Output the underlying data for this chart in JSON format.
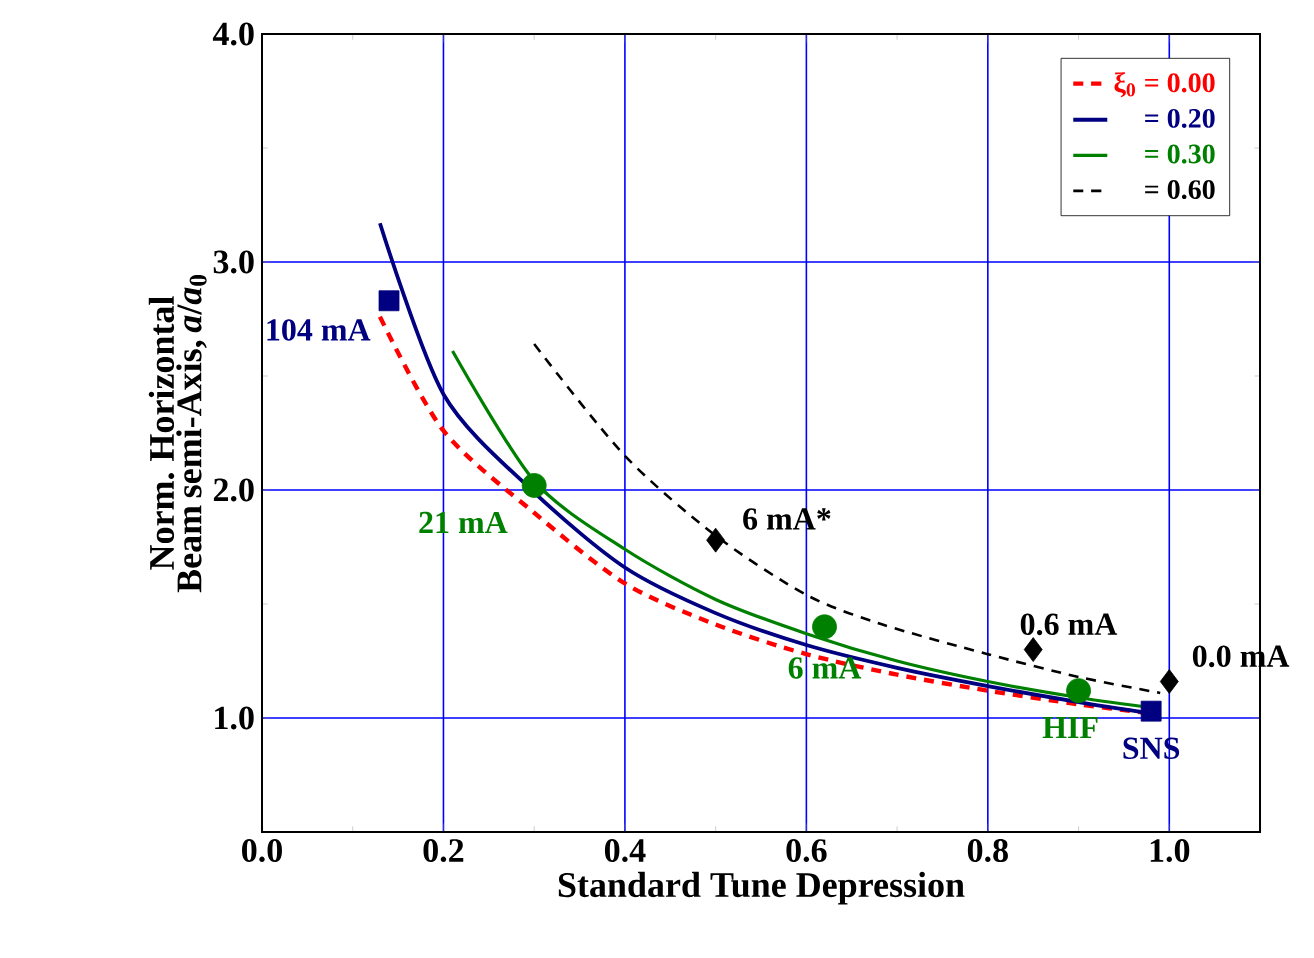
{
  "chart_data": {
    "type": "line",
    "xlabel": "Standard Tune Depression",
    "ylabel": "Norm. Horizontal Beam semi-Axis, *a*/*a*$_{0}$",
    "xlim": [
      0.0,
      1.1
    ],
    "ylim": [
      0.5,
      4.0
    ],
    "xticks": [
      {
        "value": 0.0,
        "label": "0.0"
      },
      {
        "value": 0.2,
        "label": "0.2"
      },
      {
        "value": 0.4,
        "label": "0.4"
      },
      {
        "value": 0.6,
        "label": "0.6"
      },
      {
        "value": 0.8,
        "label": "0.8"
      },
      {
        "value": 1.0,
        "label": "1.0"
      }
    ],
    "yticks": [
      {
        "value": 1.0,
        "label": "1.0"
      },
      {
        "value": 2.0,
        "label": "2.0"
      },
      {
        "value": 3.0,
        "label": "3.0"
      },
      {
        "value": 4.0,
        "label": "4.0"
      }
    ],
    "grid": true,
    "legend": "top right",
    "series": [
      {
        "name": "ξ$_{0}$ = 0.00",
        "color": "#ff0000",
        "line_style": "dashed",
        "x": [
          0.13,
          0.2,
          0.3,
          0.4,
          0.5,
          0.6,
          0.7,
          0.8,
          0.9,
          0.98
        ],
        "values": [
          2.76,
          2.26,
          1.9,
          1.59,
          1.41,
          1.28,
          1.19,
          1.12,
          1.06,
          1.02
        ]
      },
      {
        "name": "= 0.20",
        "color": "#000080",
        "line_style": "solid",
        "x": [
          0.13,
          0.2,
          0.3,
          0.4,
          0.5,
          0.6,
          0.7,
          0.8,
          0.9,
          0.98
        ],
        "values": [
          3.17,
          2.42,
          1.99,
          1.66,
          1.46,
          1.32,
          1.22,
          1.14,
          1.07,
          1.02
        ]
      },
      {
        "name": "= 0.30",
        "color": "#008000",
        "line_style": "solid",
        "x": [
          0.21,
          0.3,
          0.4,
          0.5,
          0.6,
          0.7,
          0.8,
          0.9,
          0.99
        ],
        "values": [
          2.61,
          2.04,
          1.74,
          1.52,
          1.37,
          1.25,
          1.16,
          1.09,
          1.04
        ]
      },
      {
        "name": "= 0.60",
        "color": "#000000",
        "line_style": "dashed",
        "x": [
          0.3,
          0.4,
          0.5,
          0.6,
          0.684,
          0.8,
          0.9,
          0.99
        ],
        "values": [
          2.64,
          2.15,
          1.8,
          1.54,
          1.41,
          1.28,
          1.18,
          1.11
        ]
      },
      {
        "type": "scatter",
        "marker": "square",
        "color": "#000080",
        "x": [
          0.14,
          0.98
        ],
        "values": [
          2.83,
          1.03
        ]
      },
      {
        "type": "scatter",
        "marker": "circle",
        "color": "#008000",
        "x": [
          0.3,
          0.62,
          0.9
        ],
        "values": [
          2.02,
          1.4,
          1.12
        ]
      },
      {
        "type": "scatter",
        "marker": "diamond",
        "color": "#000000",
        "x": [
          0.5,
          0.85,
          1.0
        ],
        "values": [
          1.78,
          1.3,
          1.16
        ]
      }
    ],
    "annotations": [
      {
        "text": "104 mA",
        "x": 0.14,
        "y": 2.83
      },
      {
        "text": "21 mA",
        "x": 0.3,
        "y": 2.02
      },
      {
        "text": "6 mA",
        "x": 0.62,
        "y": 1.4
      },
      {
        "text": "HIF",
        "x": 0.9,
        "y": 1.12
      },
      {
        "text": "SNS",
        "x": 0.98,
        "y": 1.03
      },
      {
        "text": "6 mA*",
        "x": 0.5,
        "y": 1.78
      },
      {
        "text": "0.6 mA",
        "x": 0.85,
        "y": 1.3
      },
      {
        "text": "0.0 mA",
        "x": 1.0,
        "y": 1.16
      }
    ]
  }
}
